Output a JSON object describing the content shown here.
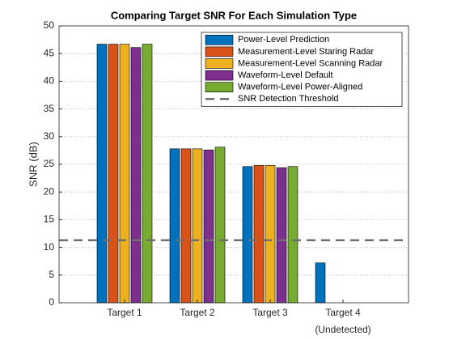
{
  "chart_data": {
    "type": "bar",
    "title": "Comparing Target SNR For Each Simulation Type",
    "y_label": "SNR (dB)",
    "categories": [
      "Target 1",
      "Target 2",
      "Target 3",
      [
        "Target  4",
        "(Undetected)"
      ]
    ],
    "series": [
      {
        "name": "Power-Level Prediction",
        "color": "#0072bd",
        "values": [
          46.7,
          27.8,
          24.6,
          7.2
        ]
      },
      {
        "name": "Measurement-Level Staring Radar",
        "color": "#d95319",
        "values": [
          46.7,
          27.8,
          24.8,
          null
        ]
      },
      {
        "name": "Measurement-Level Scanning Radar",
        "color": "#edb120",
        "values": [
          46.7,
          27.8,
          24.8,
          null
        ]
      },
      {
        "name": "Waveform-Level Default",
        "color": "#7e2f8e",
        "values": [
          46.1,
          27.6,
          24.4,
          null
        ]
      },
      {
        "name": "Waveform-Level Power-Aligned",
        "color": "#77ac30",
        "values": [
          46.7,
          28.1,
          24.6,
          null
        ]
      }
    ],
    "threshold": {
      "name": "SNR Detection Threshold",
      "value": 11.3,
      "color": "#6e6e6e"
    },
    "ylim": [
      0,
      50
    ],
    "yticks": [
      0,
      5,
      10,
      15,
      20,
      25,
      30,
      35,
      40,
      45,
      50
    ],
    "grid": true,
    "legend": "upper right"
  }
}
